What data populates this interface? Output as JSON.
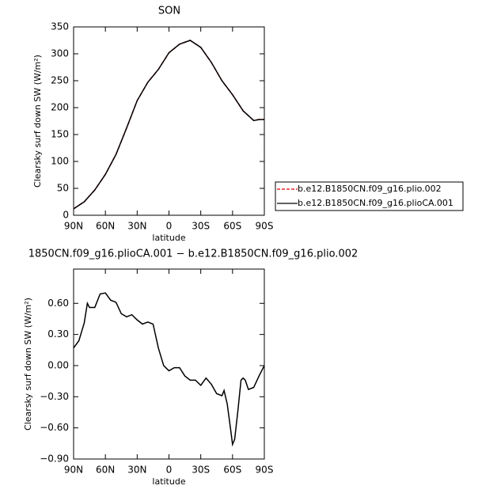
{
  "chart_data": [
    {
      "type": "line",
      "title": "SON",
      "xlabel": "latitude",
      "ylabel": "Clearsky surf down SW (W/m²)",
      "x": [
        90,
        80,
        70,
        60,
        50,
        40,
        30,
        20,
        10,
        0,
        -10,
        -20,
        -30,
        -40,
        -50,
        -60,
        -70,
        -80,
        -85,
        -90
      ],
      "series": [
        {
          "name": "b.e12.B1850CN.f09_g16.plio.002",
          "color": "#e00000",
          "line_style": "dashed",
          "values": [
            12,
            25,
            47,
            76,
            113,
            162,
            213,
            247,
            271,
            302,
            318,
            325,
            312,
            284,
            250,
            224,
            194,
            176,
            178,
            178
          ]
        },
        {
          "name": "b.e12.B1850CN.f09_g16.plioCA.001",
          "color": "#000000",
          "line_style": "solid",
          "values": [
            12,
            25,
            47,
            76,
            113,
            162,
            213,
            247,
            271,
            302,
            318,
            325,
            312,
            284,
            250,
            224,
            194,
            176,
            178,
            178
          ]
        }
      ],
      "xlim": [
        90,
        -90
      ],
      "xticks": [
        {
          "value": 90,
          "label": "90N"
        },
        {
          "value": 60,
          "label": "60N"
        },
        {
          "value": 30,
          "label": "30N"
        },
        0,
        {
          "value": -30,
          "label": "30S"
        },
        {
          "value": -60,
          "label": "60S"
        },
        {
          "value": -90,
          "label": "90S"
        }
      ],
      "ylim": [
        0,
        350
      ],
      "yticks": [
        0,
        50,
        100,
        150,
        200,
        250,
        300,
        350
      ],
      "legend": "right"
    },
    {
      "type": "line",
      "title": "1850CN.f09_g16.plioCA.001 − b.e12.B1850CN.f09_g16.plio.002",
      "xlabel": "latitude",
      "ylabel": "Clearsky surf down SW (W/m²)",
      "x": [
        90,
        85,
        80,
        77,
        75,
        70,
        65,
        60,
        55,
        50,
        45,
        40,
        35,
        30,
        25,
        20,
        15,
        10,
        5,
        0,
        -5,
        -10,
        -15,
        -20,
        -25,
        -30,
        -35,
        -40,
        -45,
        -50,
        -52,
        -55,
        -58,
        -60,
        -62,
        -65,
        -68,
        -70,
        -72,
        -75,
        -80,
        -85,
        -90
      ],
      "series": [
        {
          "color": "#000000",
          "line_style": "solid",
          "values": [
            0.17,
            0.24,
            0.41,
            0.6,
            0.56,
            0.56,
            0.69,
            0.7,
            0.63,
            0.61,
            0.5,
            0.47,
            0.49,
            0.44,
            0.4,
            0.42,
            0.4,
            0.17,
            0.0,
            -0.05,
            -0.02,
            -0.02,
            -0.1,
            -0.14,
            -0.14,
            -0.19,
            -0.12,
            -0.18,
            -0.27,
            -0.29,
            -0.24,
            -0.37,
            -0.6,
            -0.76,
            -0.71,
            -0.44,
            -0.14,
            -0.12,
            -0.14,
            -0.23,
            -0.21,
            -0.1,
            0.0
          ]
        }
      ],
      "xlim": [
        90,
        -90
      ],
      "xticks": [
        {
          "value": 90,
          "label": "90N"
        },
        {
          "value": 60,
          "label": "60N"
        },
        {
          "value": 30,
          "label": "30N"
        },
        0,
        {
          "value": -30,
          "label": "30S"
        },
        {
          "value": -60,
          "label": "60S"
        },
        {
          "value": -90,
          "label": "90S"
        }
      ],
      "ylim": [
        -0.9,
        0.93
      ],
      "yticks": [
        {
          "value": -0.9,
          "label": "−0.90"
        },
        {
          "value": -0.6,
          "label": "−0.60"
        },
        {
          "value": -0.3,
          "label": "−0.30"
        },
        {
          "value": 0,
          "label": "0.00"
        },
        {
          "value": 0.3,
          "label": "0.30"
        },
        {
          "value": 0.6,
          "label": "0.60"
        }
      ]
    }
  ]
}
